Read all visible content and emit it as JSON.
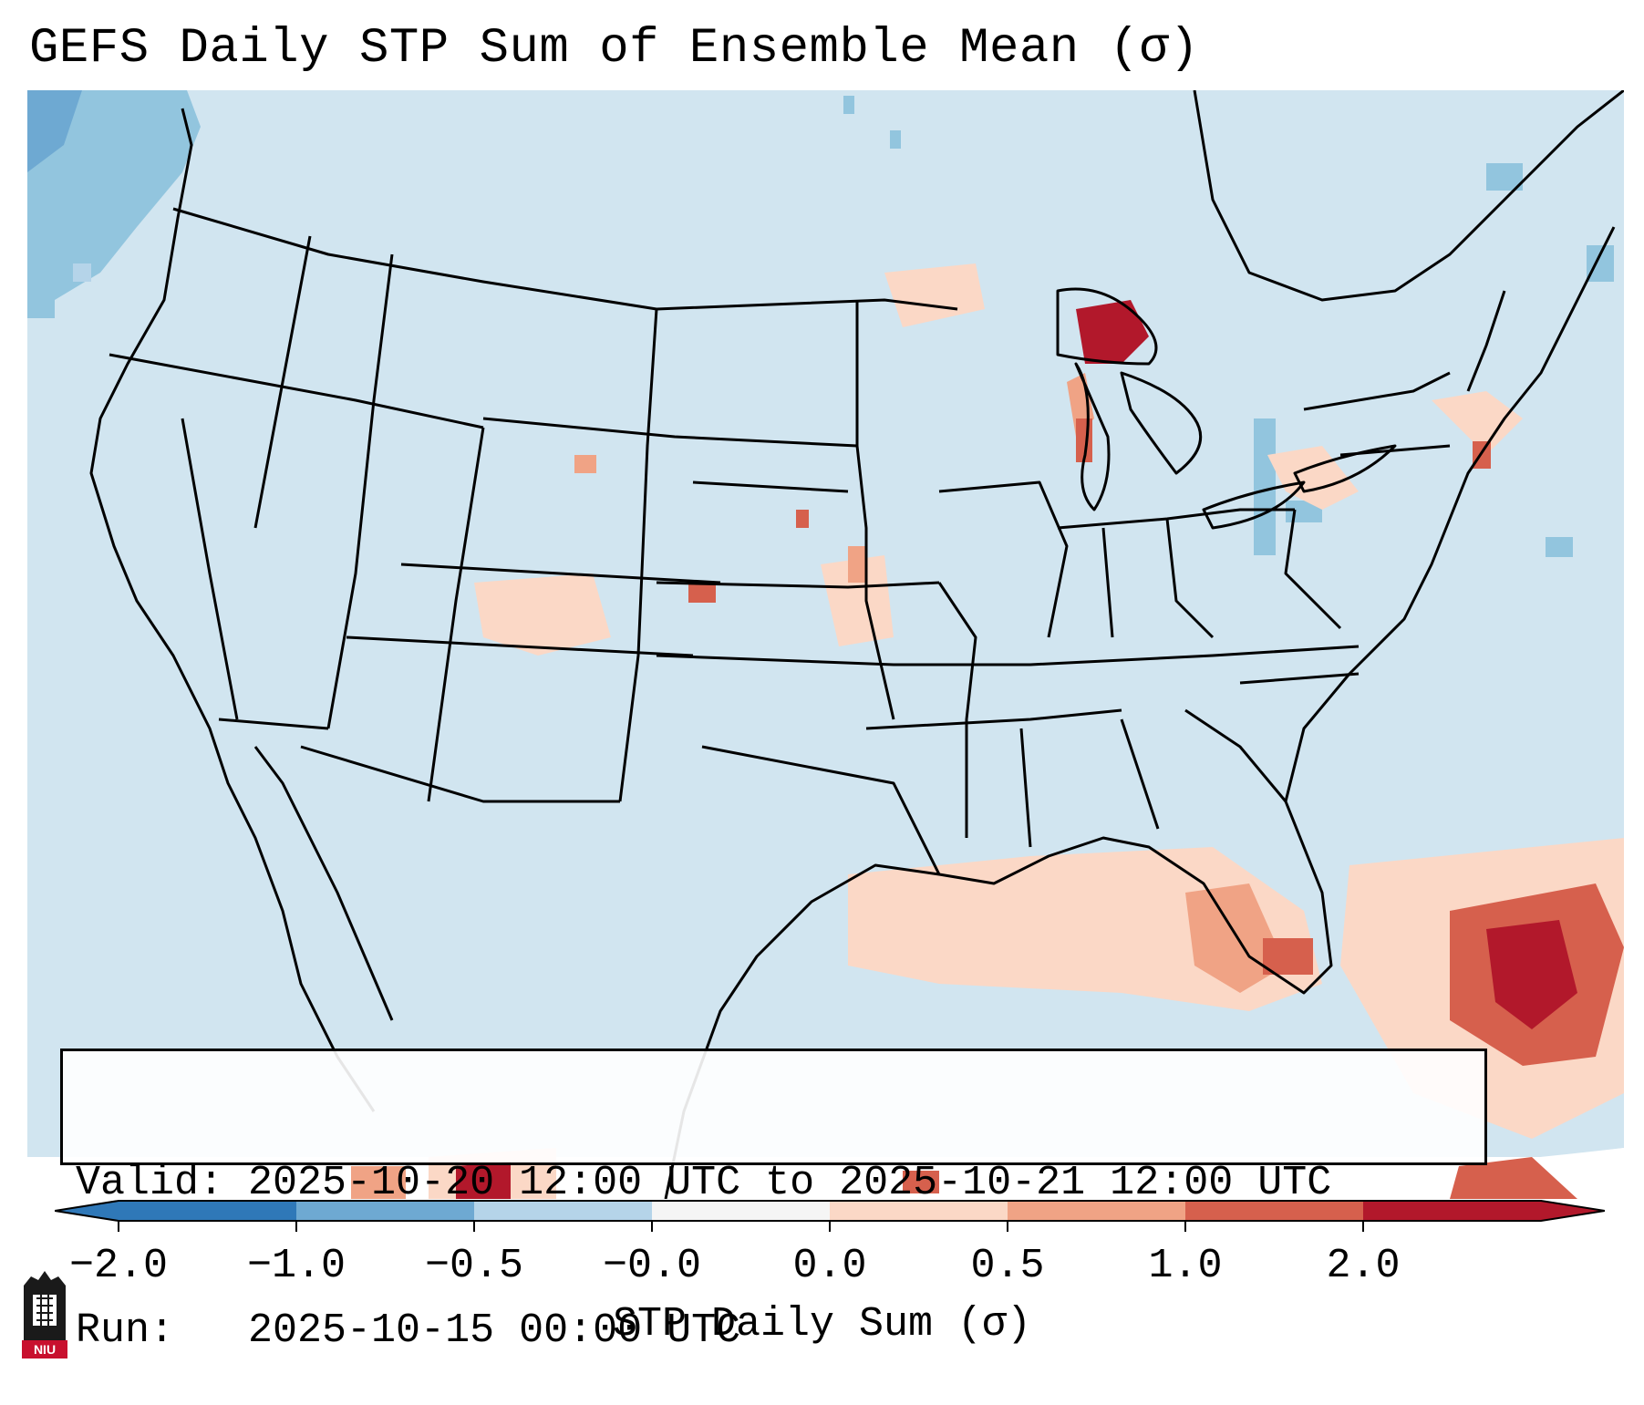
{
  "title": "GEFS Daily STP Sum of Ensemble Mean (σ)",
  "info": {
    "valid_line": "Valid: 2025-10-20 12:00 UTC to 2025-10-21 12:00 UTC",
    "run_line": "Run:   2025-10-15 00:00 UTC"
  },
  "colorbar": {
    "label": "STP Daily Sum (σ)",
    "ticks": [
      "−2.0",
      "−1.0",
      "−0.5",
      "−0.0",
      "0.0",
      "0.5",
      "1.0",
      "2.0"
    ],
    "colors": [
      "#2f78b8",
      "#6ea9d2",
      "#b5d4e9",
      "#f5f5f5",
      "#fbd8c6",
      "#f0a385",
      "#d6604d",
      "#b2182b"
    ]
  },
  "logo": {
    "text": "NIU"
  },
  "map": {
    "ocean_color": "#ffffff",
    "land_color": "#d1e5f0",
    "border_color": "#000000"
  }
}
